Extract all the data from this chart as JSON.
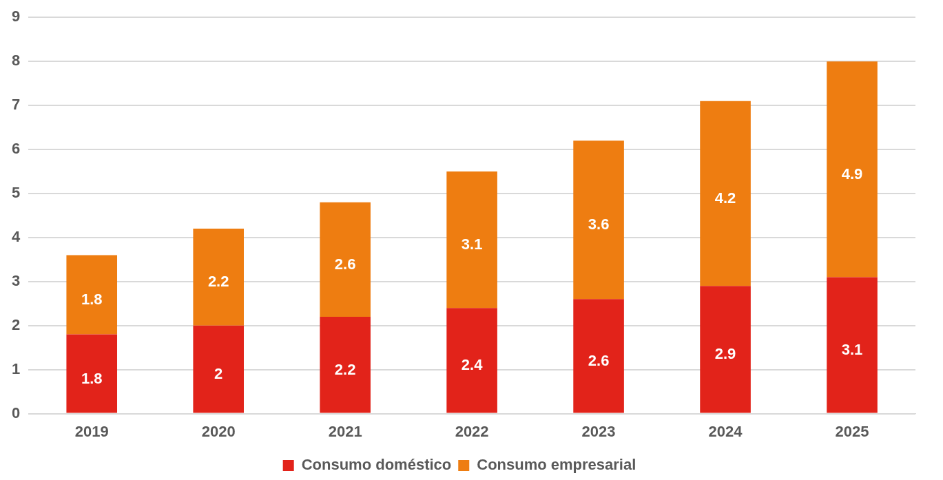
{
  "chart_data": {
    "type": "bar",
    "stacked": true,
    "categories": [
      "2019",
      "2020",
      "2021",
      "2022",
      "2023",
      "2024",
      "2025"
    ],
    "series": [
      {
        "name": "Consumo doméstico",
        "color": "#e2231a",
        "values": [
          1.8,
          2,
          2.2,
          2.4,
          2.6,
          2.9,
          3.1
        ]
      },
      {
        "name": "Consumo empresarial",
        "color": "#ee7d11",
        "values": [
          1.8,
          2.2,
          2.6,
          3.1,
          3.6,
          4.2,
          4.9
        ]
      }
    ],
    "ylim": [
      0,
      9
    ],
    "yticks": [
      0,
      1,
      2,
      3,
      4,
      5,
      6,
      7,
      8,
      9
    ],
    "grid": "y",
    "legend": "bottom",
    "data_labels": true
  }
}
